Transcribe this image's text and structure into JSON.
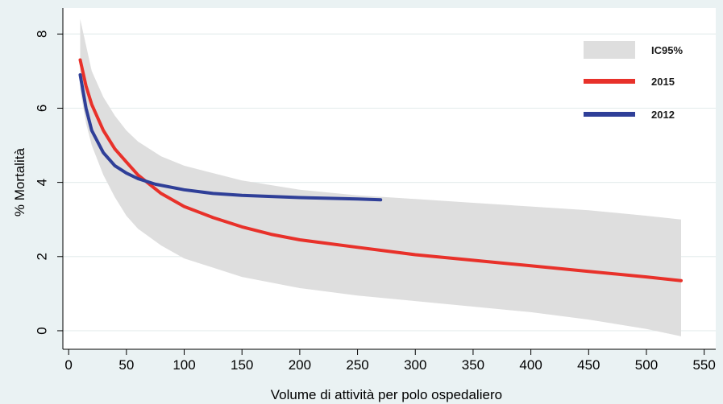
{
  "chart_data": {
    "type": "line",
    "title": "",
    "xlabel": "Volume di attività per polo ospedaliero",
    "ylabel": "% Mortalità",
    "xlim": [
      -5,
      560
    ],
    "ylim": [
      -0.5,
      8.7
    ],
    "x_ticks": [
      0,
      50,
      100,
      150,
      200,
      250,
      300,
      350,
      400,
      450,
      500,
      550
    ],
    "y_ticks": [
      0,
      2,
      4,
      6,
      8
    ],
    "grid": true,
    "legend_position": "top-right",
    "band": {
      "name": "IC95%",
      "color": "#dedede",
      "x": [
        10,
        15,
        20,
        30,
        40,
        50,
        60,
        80,
        100,
        150,
        200,
        250,
        300,
        350,
        400,
        450,
        500,
        530
      ],
      "upper": [
        8.4,
        7.7,
        7.0,
        6.3,
        5.8,
        5.4,
        5.1,
        4.7,
        4.45,
        4.05,
        3.8,
        3.65,
        3.55,
        3.45,
        3.35,
        3.25,
        3.1,
        3.0
      ],
      "lower": [
        6.5,
        5.6,
        5.0,
        4.2,
        3.6,
        3.1,
        2.75,
        2.3,
        1.95,
        1.45,
        1.15,
        0.95,
        0.8,
        0.65,
        0.5,
        0.3,
        0.05,
        -0.15
      ]
    },
    "series": [
      {
        "name": "2015",
        "color": "#e8312a",
        "x": [
          10,
          15,
          20,
          30,
          40,
          50,
          60,
          70,
          80,
          100,
          125,
          150,
          175,
          200,
          250,
          300,
          350,
          400,
          450,
          500,
          530
        ],
        "y": [
          7.3,
          6.6,
          6.1,
          5.4,
          4.9,
          4.55,
          4.2,
          3.95,
          3.7,
          3.35,
          3.05,
          2.8,
          2.6,
          2.45,
          2.25,
          2.05,
          1.9,
          1.75,
          1.6,
          1.45,
          1.35
        ]
      },
      {
        "name": "2012",
        "color": "#2f3f98",
        "x": [
          10,
          15,
          20,
          30,
          40,
          50,
          60,
          75,
          100,
          125,
          150,
          175,
          200,
          225,
          250,
          270
        ],
        "y": [
          6.9,
          6.0,
          5.4,
          4.8,
          4.45,
          4.25,
          4.1,
          3.95,
          3.8,
          3.7,
          3.65,
          3.62,
          3.59,
          3.57,
          3.55,
          3.53
        ]
      }
    ]
  }
}
